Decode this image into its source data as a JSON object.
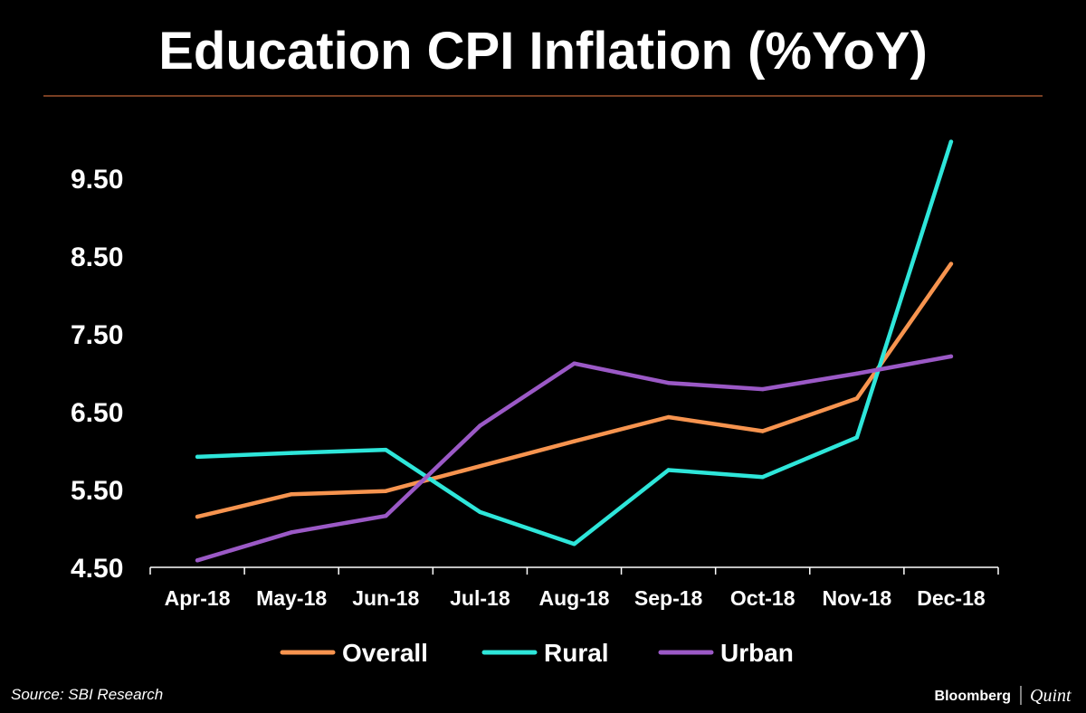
{
  "colors": {
    "background": "#000000",
    "text": "#ffffff",
    "rule": "#a0522d",
    "axis": "#ffffff",
    "overall": "#f7944f",
    "rural": "#2ee6da",
    "urban": "#9b59c6"
  },
  "footer": {
    "source": "Source:  SBI Research",
    "brand_main": "Bloomberg",
    "brand_separator": "|",
    "brand_sub": "Quint"
  },
  "chart_data": {
    "type": "line",
    "title": "Education CPI Inflation (%YoY)",
    "xlabel": "",
    "ylabel": "",
    "categories": [
      "Apr-18",
      "May-18",
      "Jun-18",
      "Jul-18",
      "Aug-18",
      "Sep-18",
      "Oct-18",
      "Nov-18",
      "Dec-18"
    ],
    "ylim": [
      4.5,
      10.0
    ],
    "yticks": [
      4.5,
      5.5,
      6.5,
      7.5,
      8.5,
      9.5
    ],
    "ytick_labels": [
      "4.50",
      "5.50",
      "6.50",
      "7.50",
      "8.50",
      "9.50"
    ],
    "grid": false,
    "legend_position": "bottom",
    "series": [
      {
        "name": "Overall",
        "color": "#f7944f",
        "values": [
          5.15,
          5.44,
          5.48,
          5.8,
          6.12,
          6.43,
          6.25,
          6.67,
          8.4
        ]
      },
      {
        "name": "Rural",
        "color": "#2ee6da",
        "values": [
          5.92,
          5.97,
          6.01,
          5.21,
          4.8,
          5.75,
          5.66,
          6.17,
          9.97
        ]
      },
      {
        "name": "Urban",
        "color": "#9b59c6",
        "values": [
          4.59,
          4.95,
          5.16,
          6.32,
          7.12,
          6.87,
          6.79,
          6.99,
          7.21
        ]
      }
    ]
  }
}
